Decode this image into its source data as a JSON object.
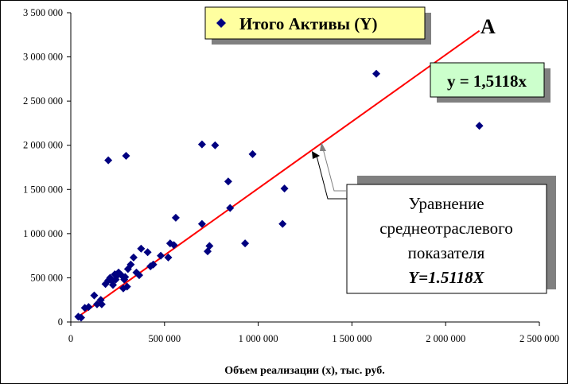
{
  "chart_data": {
    "type": "scatter",
    "xlabel": "Объем реализации (x), тыс. руб.",
    "ylabel": "",
    "xlim": [
      0,
      2500000
    ],
    "ylim": [
      0,
      3500000
    ],
    "x_ticks": [
      "0",
      "500 000",
      "1 000 000",
      "1 500 000",
      "2 000 000",
      "2 500 000"
    ],
    "y_ticks": [
      "0",
      "500 000",
      "1 000 000",
      "1 500 000",
      "2 000 000",
      "2 500 000",
      "3 000 000",
      "3 500 000"
    ],
    "grid": false,
    "legend_position": "top-center",
    "series": [
      {
        "name": "Итого Активы (Y)",
        "color": "#000080",
        "marker": "diamond",
        "points": [
          [
            40000,
            60000
          ],
          [
            55000,
            50000
          ],
          [
            75000,
            160000
          ],
          [
            95000,
            170000
          ],
          [
            125000,
            300000
          ],
          [
            140000,
            200000
          ],
          [
            160000,
            250000
          ],
          [
            165000,
            200000
          ],
          [
            185000,
            430000
          ],
          [
            200000,
            470000
          ],
          [
            210000,
            500000
          ],
          [
            220000,
            460000
          ],
          [
            225000,
            420000
          ],
          [
            235000,
            540000
          ],
          [
            240000,
            480000
          ],
          [
            245000,
            520000
          ],
          [
            255000,
            560000
          ],
          [
            270000,
            530000
          ],
          [
            280000,
            380000
          ],
          [
            285000,
            480000
          ],
          [
            290000,
            510000
          ],
          [
            300000,
            400000
          ],
          [
            305000,
            600000
          ],
          [
            320000,
            650000
          ],
          [
            335000,
            730000
          ],
          [
            350000,
            560000
          ],
          [
            365000,
            530000
          ],
          [
            375000,
            830000
          ],
          [
            410000,
            790000
          ],
          [
            425000,
            630000
          ],
          [
            440000,
            650000
          ],
          [
            480000,
            750000
          ],
          [
            520000,
            730000
          ],
          [
            530000,
            890000
          ],
          [
            550000,
            870000
          ],
          [
            560000,
            1180000
          ],
          [
            700000,
            1110000
          ],
          [
            730000,
            800000
          ],
          [
            740000,
            860000
          ],
          [
            850000,
            1290000
          ],
          [
            930000,
            890000
          ],
          [
            1130000,
            1110000
          ],
          [
            1140000,
            1510000
          ],
          [
            840000,
            1590000
          ],
          [
            970000,
            1900000
          ],
          [
            700000,
            2010000
          ],
          [
            770000,
            2000000
          ],
          [
            200000,
            1830000
          ],
          [
            295000,
            1880000
          ],
          [
            1630000,
            2810000
          ],
          [
            2180000,
            2220000
          ]
        ]
      },
      {
        "name": "trend",
        "color": "#ff0000",
        "slope": 1.5118,
        "x_range": [
          40000,
          2180000
        ]
      }
    ],
    "annotations": {
      "line_letter": "A",
      "equation": "y = 1,5118x",
      "note_lines": [
        "Уравнение",
        "среднеотраслевого",
        "показателя"
      ],
      "note_formula": "Y=1.5118X"
    }
  },
  "colors": {
    "legend_bg": "#ffffa0",
    "equation_bg": "#ccffcc",
    "shadow": "#808080",
    "marker": "#000080",
    "trend": "#ff0000"
  }
}
